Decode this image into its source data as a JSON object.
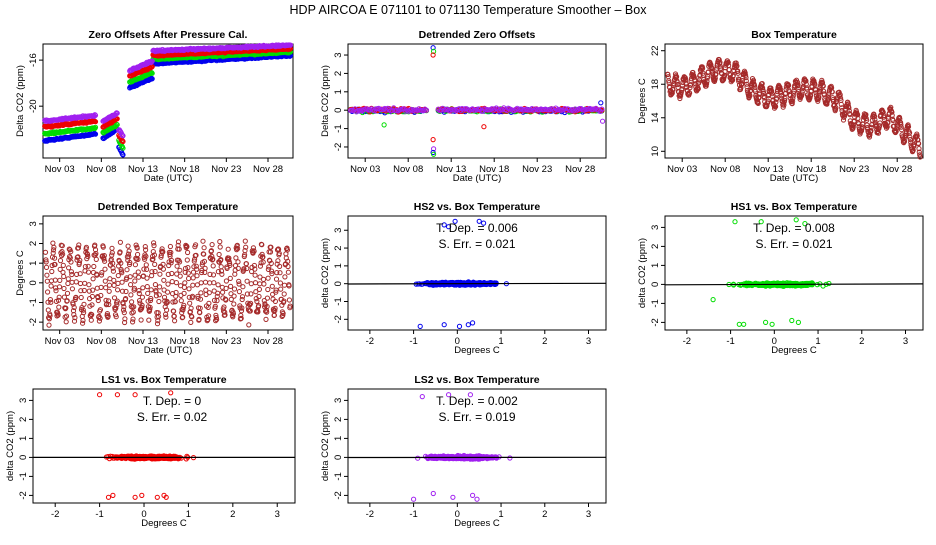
{
  "page_title": "HDP    AIRCOA E    071101 to 071130   Temperature Smoother – Box",
  "colors": {
    "hs2": "#0000ee",
    "hs1": "#00dd00",
    "ls1": "#ee0000",
    "ls2": "#a020f0",
    "box": "#a52a2a",
    "zero_line": "#000000"
  },
  "chart_data": [
    {
      "id": "p1",
      "type": "scatter",
      "title": "Zero Offsets After Pressure Cal.",
      "xlabel": "Date (UTC)",
      "ylabel": "Delta CO2 (ppm)",
      "xlim": [
        0,
        30
      ],
      "ylim": [
        -24.5,
        -14.6
      ],
      "xticks": [
        2,
        7,
        12,
        17,
        22,
        27
      ],
      "xticklabels": [
        "Nov 03",
        "Nov 08",
        "Nov 13",
        "Nov 18",
        "Nov 23",
        "Nov 28"
      ],
      "yticks": [
        -20,
        -16
      ],
      "yticklabels": [
        "-20",
        "-16"
      ],
      "series": [
        {
          "name": "HS2",
          "color": "#0000ee",
          "segments": [
            [
              0.2,
              6.3,
              -23.0,
              -22.4
            ],
            [
              7.2,
              8.9,
              -22.8,
              -22.0
            ],
            [
              9.1,
              9.6,
              -23.5,
              -24.2
            ],
            [
              10.4,
              13.1,
              -18.4,
              -17.6
            ],
            [
              13.2,
              29.7,
              -16.3,
              -15.6
            ]
          ]
        },
        {
          "name": "HS1",
          "color": "#00dd00",
          "segments": [
            [
              0.2,
              6.3,
              -22.4,
              -21.9
            ],
            [
              7.2,
              8.9,
              -22.3,
              -21.6
            ],
            [
              9.1,
              9.6,
              -23.0,
              -23.6
            ],
            [
              10.4,
              13.1,
              -17.9,
              -17.1
            ],
            [
              13.2,
              29.7,
              -15.9,
              -15.3
            ]
          ]
        },
        {
          "name": "LS1",
          "color": "#ee0000",
          "segments": [
            [
              0.2,
              6.3,
              -21.8,
              -21.3
            ],
            [
              7.2,
              8.9,
              -21.8,
              -21.1
            ],
            [
              9.1,
              9.6,
              -22.5,
              -23.1
            ],
            [
              10.4,
              13.1,
              -17.4,
              -16.6
            ],
            [
              13.2,
              29.7,
              -15.6,
              -15.0
            ]
          ]
        },
        {
          "name": "LS2",
          "color": "#a020f0",
          "segments": [
            [
              0.2,
              6.3,
              -21.3,
              -20.8
            ],
            [
              7.2,
              8.9,
              -21.3,
              -20.6
            ],
            [
              9.1,
              9.6,
              -22.0,
              -22.6
            ],
            [
              10.4,
              13.1,
              -16.9,
              -16.1
            ],
            [
              13.2,
              29.7,
              -15.2,
              -14.7
            ]
          ]
        }
      ]
    },
    {
      "id": "p2",
      "type": "scatter",
      "title": "Detrended Zero Offsets",
      "xlabel": "Date (UTC)",
      "ylabel": "Delta CO2 (ppm)",
      "xlim": [
        0,
        30
      ],
      "ylim": [
        -2.6,
        3.6
      ],
      "xticks": [
        2,
        7,
        12,
        17,
        22,
        27
      ],
      "xticklabels": [
        "Nov 03",
        "Nov 08",
        "Nov 13",
        "Nov 18",
        "Nov 23",
        "Nov 28"
      ],
      "yticks": [
        -2,
        -1,
        0,
        1,
        2,
        3
      ],
      "yticklabels": [
        "-2",
        "-1",
        "0",
        "1",
        "2",
        "3"
      ],
      "series_colors": [
        "#0000ee",
        "#00dd00",
        "#ee0000",
        "#a020f0"
      ],
      "gap": [
        9.2,
        10.4
      ],
      "spikes": [
        {
          "x": 9.9,
          "values": [
            3.4,
            3.2,
            3.0,
            -2.1,
            -2.3,
            -2.4,
            -1.6
          ]
        }
      ],
      "outliers": [
        {
          "x": 4.2,
          "y": -0.8
        },
        {
          "x": 15.8,
          "y": -0.9
        },
        {
          "x": 29.6,
          "y": -0.6
        },
        {
          "x": 29.4,
          "y": 0.4
        }
      ]
    },
    {
      "id": "p3",
      "type": "scatter",
      "title": "Box Temperature",
      "xlabel": "Date (UTC)",
      "ylabel": "Degrees C",
      "xlim": [
        0,
        30
      ],
      "ylim": [
        9.2,
        22.8
      ],
      "xticks": [
        2,
        7,
        12,
        17,
        22,
        27
      ],
      "xticklabels": [
        "Nov 03",
        "Nov 08",
        "Nov 13",
        "Nov 18",
        "Nov 23",
        "Nov 28"
      ],
      "yticks": [
        10,
        14,
        18,
        22
      ],
      "yticklabels": [
        "10",
        "14",
        "18",
        "22"
      ],
      "color": "#a52a2a",
      "trend_x": [
        0,
        2,
        4,
        6,
        8,
        10,
        12,
        14,
        16,
        18,
        20,
        22,
        24,
        26,
        28,
        29.5
      ],
      "trend_y": [
        18.2,
        17.6,
        18.5,
        19.8,
        19.5,
        17.5,
        16.3,
        16.8,
        17.5,
        17.2,
        16.2,
        13.6,
        13.0,
        14.2,
        12.0,
        10.5
      ],
      "amplitude": 2.1
    },
    {
      "id": "p4",
      "type": "scatter",
      "title": "Detrended Box Temperature",
      "xlabel": "Date (UTC)",
      "ylabel": "Degrees C",
      "xlim": [
        0,
        30
      ],
      "ylim": [
        -2.4,
        3.4
      ],
      "xticks": [
        2,
        7,
        12,
        17,
        22,
        27
      ],
      "xticklabels": [
        "Nov 03",
        "Nov 08",
        "Nov 13",
        "Nov 18",
        "Nov 23",
        "Nov 28"
      ],
      "yticks": [
        -2,
        -1,
        0,
        1,
        2,
        3
      ],
      "yticklabels": [
        "-2",
        "-1",
        "0",
        "1",
        "2",
        "3"
      ],
      "color": "#a52a2a",
      "amplitude": 2.2
    },
    {
      "id": "p5",
      "type": "scatter",
      "title": "HS2 vs. Box Temperature",
      "xlabel": "Degrees C",
      "ylabel": "delta CO2 (ppm)",
      "annotation": [
        "T. Dep. =  0.006",
        "S. Err. =  0.021"
      ],
      "xlim": [
        -2.5,
        3.4
      ],
      "ylim": [
        -2.6,
        3.8
      ],
      "xticks": [
        -2,
        -1,
        0,
        1,
        2,
        3
      ],
      "xticklabels": [
        "-2",
        "-1",
        "0",
        "1",
        "2",
        "3"
      ],
      "yticks": [
        -2,
        -1,
        0,
        1,
        2,
        3
      ],
      "yticklabels": [
        "-2",
        "-1",
        "0",
        "1",
        "2",
        "3"
      ],
      "color": "#0000ee",
      "fit_slope": 0.006,
      "x_range": [
        -2.4,
        3.3
      ],
      "outliers": [
        [
          -0.3,
          3.3
        ],
        [
          -0.05,
          3.5
        ],
        [
          0.5,
          3.5
        ],
        [
          0.6,
          3.4
        ],
        [
          -0.2,
          3.2
        ],
        [
          -0.85,
          -2.4
        ],
        [
          -0.3,
          -2.3
        ],
        [
          0.05,
          -2.4
        ],
        [
          0.25,
          -2.3
        ],
        [
          0.35,
          -2.2
        ]
      ]
    },
    {
      "id": "p6",
      "type": "scatter",
      "title": "HS1 vs. Box Temperature",
      "xlabel": "Degrees C",
      "ylabel": "delta CO2 (ppm)",
      "annotation": [
        "T. Dep. =  0.008",
        "S. Err. =  0.021"
      ],
      "xlim": [
        -2.5,
        3.4
      ],
      "ylim": [
        -2.4,
        3.6
      ],
      "xticks": [
        -2,
        -1,
        0,
        1,
        2,
        3
      ],
      "xticklabels": [
        "-2",
        "-1",
        "0",
        "1",
        "2",
        "3"
      ],
      "yticks": [
        -2,
        -1,
        0,
        1,
        2,
        3
      ],
      "yticklabels": [
        "-2",
        "-1",
        "0",
        "1",
        "2",
        "3"
      ],
      "color": "#00dd00",
      "fit_slope": 0.008,
      "x_range": [
        -2.4,
        3.3
      ],
      "outliers": [
        [
          -0.9,
          3.3
        ],
        [
          -0.3,
          3.3
        ],
        [
          0.5,
          3.4
        ],
        [
          0.7,
          3.2
        ],
        [
          -0.8,
          -2.1
        ],
        [
          -0.7,
          -2.1
        ],
        [
          -0.2,
          -2.0
        ],
        [
          -0.05,
          -2.1
        ],
        [
          0.4,
          -1.9
        ],
        [
          0.55,
          -2.0
        ],
        [
          -1.4,
          -0.8
        ]
      ]
    },
    {
      "id": "p7",
      "type": "scatter",
      "title": "LS1 vs. Box Temperature",
      "xlabel": "Degrees C",
      "ylabel": "delta CO2 (ppm)",
      "annotation": [
        "T. Dep. =  0",
        "S. Err. =  0.02"
      ],
      "xlim": [
        -2.5,
        3.4
      ],
      "ylim": [
        -2.4,
        3.6
      ],
      "xticks": [
        -2,
        -1,
        0,
        1,
        2,
        3
      ],
      "xticklabels": [
        "-2",
        "-1",
        "0",
        "1",
        "2",
        "3"
      ],
      "yticks": [
        -2,
        -1,
        0,
        1,
        2,
        3
      ],
      "yticklabels": [
        "-2",
        "-1",
        "0",
        "1",
        "2",
        "3"
      ],
      "color": "#ee0000",
      "fit_slope": 0.0,
      "x_range": [
        -2.4,
        3.3
      ],
      "outliers": [
        [
          -1.0,
          3.3
        ],
        [
          -0.6,
          3.3
        ],
        [
          -0.2,
          3.3
        ],
        [
          0.6,
          3.4
        ],
        [
          -0.8,
          -2.1
        ],
        [
          -0.7,
          -2.0
        ],
        [
          -0.2,
          -2.1
        ],
        [
          -0.05,
          -2.0
        ],
        [
          0.3,
          -2.1
        ],
        [
          0.45,
          -2.0
        ],
        [
          0.5,
          -2.1
        ]
      ]
    },
    {
      "id": "p8",
      "type": "scatter",
      "title": "LS2 vs. Box Temperature",
      "xlabel": "Degrees C",
      "ylabel": "delta CO2 (ppm)",
      "annotation": [
        "T. Dep. =  0.002",
        "S. Err. =  0.019"
      ],
      "xlim": [
        -2.5,
        3.4
      ],
      "ylim": [
        -2.4,
        3.6
      ],
      "xticks": [
        -2,
        -1,
        0,
        1,
        2,
        3
      ],
      "xticklabels": [
        "-2",
        "-1",
        "0",
        "1",
        "2",
        "3"
      ],
      "yticks": [
        -2,
        -1,
        0,
        1,
        2,
        3
      ],
      "yticklabels": [
        "-2",
        "-1",
        "0",
        "1",
        "2",
        "3"
      ],
      "color": "#a020f0",
      "fit_slope": 0.002,
      "x_range": [
        -2.4,
        3.3
      ],
      "outliers": [
        [
          -0.8,
          3.2
        ],
        [
          -0.2,
          3.3
        ],
        [
          0.3,
          3.3
        ],
        [
          -1.0,
          -2.2
        ],
        [
          -0.55,
          -1.9
        ],
        [
          -0.1,
          -2.1
        ],
        [
          0.35,
          -2.0
        ],
        [
          0.45,
          -2.2
        ]
      ]
    }
  ]
}
